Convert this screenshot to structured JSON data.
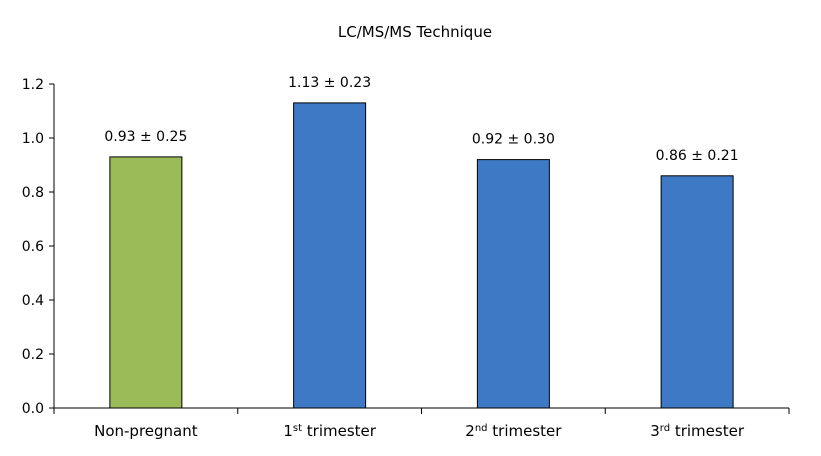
{
  "chart_data": {
    "type": "bar",
    "title": "LC/MS/MS Technique",
    "categories": [
      {
        "base": "Non-pregnant",
        "sup": "",
        "rest": ""
      },
      {
        "base": "1",
        "sup": "st",
        "rest": " trimester"
      },
      {
        "base": "2",
        "sup": "nd",
        "rest": " trimester"
      },
      {
        "base": "3",
        "sup": "rd",
        "rest": " trimester"
      }
    ],
    "values": [
      0.93,
      1.13,
      0.92,
      0.86
    ],
    "data_labels": [
      "0.93 ± 0.25",
      "1.13 ± 0.23",
      "0.92 ± 0.30",
      "0.86 ± 0.21"
    ],
    "bar_colors": [
      "#9BBB59",
      "#3D79C4",
      "#3D79C4",
      "#3D79C4"
    ],
    "ylim": [
      0,
      1.2
    ],
    "yticks": [
      "0.0",
      "0.2",
      "0.4",
      "0.6",
      "0.8",
      "1.0",
      "1.2"
    ],
    "xlabel": "",
    "ylabel": "",
    "grid": false
  }
}
